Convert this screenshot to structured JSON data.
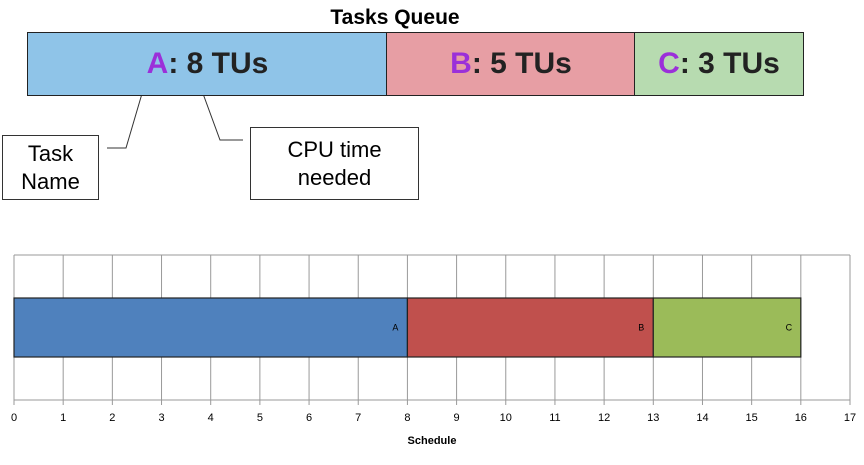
{
  "queue": {
    "title": "Tasks Queue",
    "tasks": [
      {
        "name": "A",
        "label": ": 8 TUs"
      },
      {
        "name": "B",
        "label": ": 5 TUs"
      },
      {
        "name": "C",
        "label": ": 3 TUs"
      }
    ]
  },
  "callouts": [
    "Task Name",
    "CPU time needed"
  ],
  "chart_data": {
    "type": "gantt",
    "xlabel": "Schedule",
    "series": [
      {
        "name": "A",
        "color": "#4f81bd",
        "values": [
          8
        ]
      },
      {
        "name": "B",
        "color": "#c0504d",
        "values": [
          5
        ]
      },
      {
        "name": "C",
        "color": "#9bbb59",
        "values": [
          3
        ]
      }
    ],
    "xlim": [
      0,
      17
    ],
    "xticks": [
      0,
      1,
      2,
      3,
      4,
      5,
      6,
      7,
      8,
      9,
      10,
      11,
      12,
      13,
      14,
      15,
      16,
      17
    ],
    "grid": true
  }
}
